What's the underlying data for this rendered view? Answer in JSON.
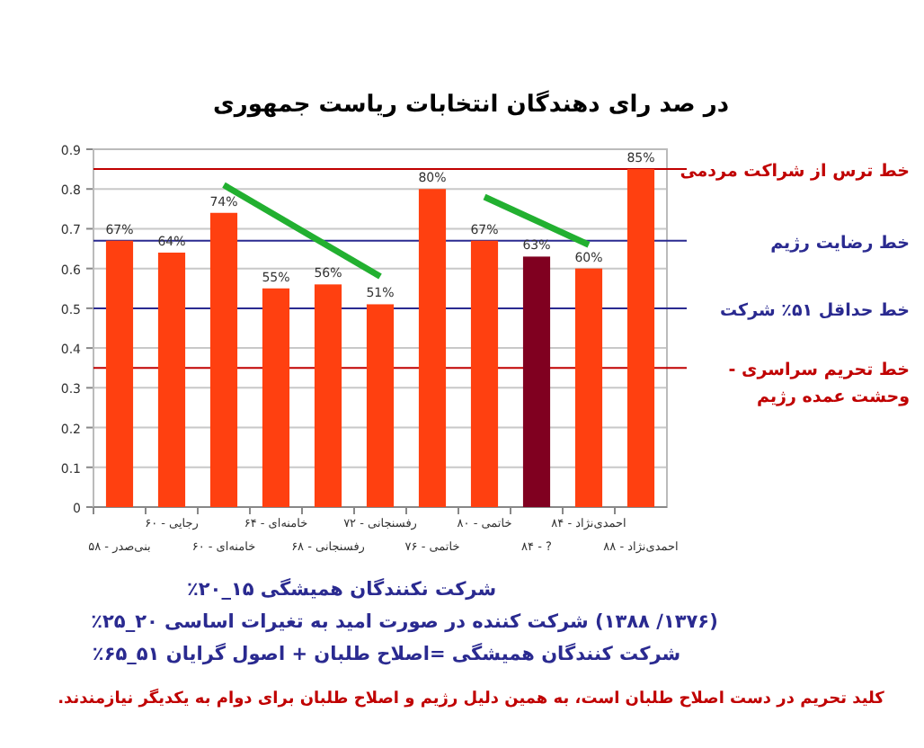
{
  "chart_data": {
    "type": "bar",
    "title": "در صد رای دهندگان انتخابات ریاست جمهوری",
    "categories": [
      "بنی‌صدر - ۵۸",
      "رجایی - ۶۰",
      "خامنه‌ای - ۶۰",
      "خامنه‌ای - ۶۴",
      "رفسنجانی - ۶۸",
      "رفسنجانی - ۷۲",
      "خاتمی - ۷۶",
      "خاتمی - ۸۰",
      "? - ۸۴",
      "احمدی‌نژاد - ۸۴",
      "احمدی‌نژاد - ۸۸"
    ],
    "series": [
      {
        "values": [
          0.67,
          0.64,
          0.74,
          0.55,
          0.56,
          0.51,
          0.8,
          0.67,
          0.63,
          0.6,
          0.85
        ],
        "value_labels": [
          "67%",
          "64%",
          "74%",
          "55%",
          "56%",
          "51%",
          "80%",
          "67%",
          "63%",
          "60%",
          "85%"
        ],
        "colors": [
          "#ff4010",
          "#ff4010",
          "#ff4010",
          "#ff4010",
          "#ff4010",
          "#ff4010",
          "#ff4010",
          "#ff4010",
          "#800020",
          "#ff4010",
          "#ff4010"
        ]
      },
      {
        "type": "line",
        "color": "#22b030",
        "x": [
          "خامنه‌ای - ۶۰",
          "رفسنجانی - ۷۲"
        ],
        "values": [
          0.81,
          0.58
        ]
      },
      {
        "type": "line",
        "color": "#22b030",
        "x": [
          "خاتمی - ۸۰",
          "احمدی‌نژاد - ۸۴"
        ],
        "values": [
          0.78,
          0.66
        ]
      }
    ],
    "ylim": [
      0,
      0.9
    ],
    "yticks": [
      0,
      0.1,
      0.2,
      0.3,
      0.4,
      0.5,
      0.6,
      0.7,
      0.8,
      0.9
    ],
    "grid": "y",
    "ref_lines": [
      {
        "axis": "y",
        "value": 0.85,
        "label": "خط ترس از شراکت مردمی",
        "color": "#c00000"
      },
      {
        "axis": "y",
        "value": 0.67,
        "label": "خط رضایت رژیم",
        "color": "#2a2a90"
      },
      {
        "axis": "y",
        "value": 0.5,
        "label": "خط حداقل ۵۱٪ شرکت",
        "color": "#2a2a90"
      },
      {
        "axis": "y",
        "value": 0.35,
        "label": "خط تحریم سراسری  -\nوحشت عمده رژیم",
        "color": "#c00000"
      }
    ],
    "annotations": [
      "شرکت نکنندگان همیشگی  ۱۵_۲۰٪",
      "(۱۳۷۶/ ۱۳۸۸)  شرکت کننده در صورت امید به تغیرات  اساسی  ۲۰_۲۵٪",
      "شرکت کنندگان همیشگی =اصلاح طلبان + اصول گرایان  ۵۱_۶۵٪",
      "کلید تحریم در دست اصلاح طلبان است، به همین دلیل رژیم و اصلاح طلبان برای دوام به یکدیگر نیازمندند."
    ]
  }
}
